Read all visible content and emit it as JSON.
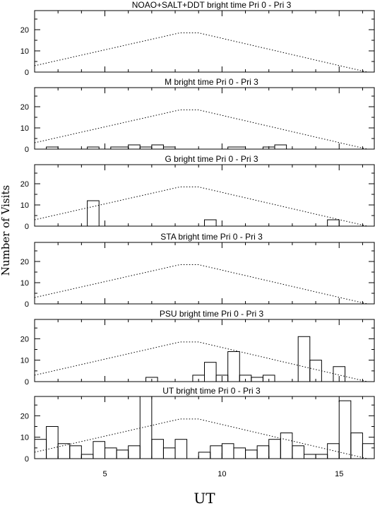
{
  "chart_data": {
    "type": "bar",
    "style": "step-histogram with dotted reference curve",
    "xlabel": "UT",
    "ylabel": "Number of Visits",
    "xlim": [
      2,
      16.5
    ],
    "ylim": [
      0,
      29
    ],
    "x_ticks": [
      5,
      10,
      15
    ],
    "y_ticks": [
      0,
      10,
      20
    ],
    "reference_curve": {
      "style": "dotted",
      "x": [
        2,
        8.2,
        9.0,
        16.2
      ],
      "y": [
        3,
        18.5,
        18.5,
        0
      ]
    },
    "panels": [
      {
        "title": "NOAO+SALT+DDT    bright time Pri 0 - Pri 3",
        "bins": []
      },
      {
        "title": "M    bright time Pri 0 - Pri 3",
        "bins": [
          {
            "x0": 2.5,
            "x1": 3.0,
            "y": 1
          },
          {
            "x0": 4.25,
            "x1": 4.75,
            "y": 1
          },
          {
            "x0": 5.25,
            "x1": 6.0,
            "y": 1
          },
          {
            "x0": 6.0,
            "x1": 6.5,
            "y": 2
          },
          {
            "x0": 6.5,
            "x1": 7.0,
            "y": 1
          },
          {
            "x0": 7.0,
            "x1": 7.5,
            "y": 2
          },
          {
            "x0": 7.5,
            "x1": 8.0,
            "y": 1
          },
          {
            "x0": 10.25,
            "x1": 11.0,
            "y": 1
          },
          {
            "x0": 11.75,
            "x1": 12.25,
            "y": 1
          },
          {
            "x0": 12.25,
            "x1": 12.75,
            "y": 2
          }
        ]
      },
      {
        "title": "G    bright time Pri 0 - Pri 3",
        "bins": [
          {
            "x0": 4.25,
            "x1": 4.75,
            "y": 12
          },
          {
            "x0": 9.25,
            "x1": 9.75,
            "y": 3
          },
          {
            "x0": 14.5,
            "x1": 15.0,
            "y": 3
          }
        ]
      },
      {
        "title": "STA    bright time Pri 0 - Pri 3",
        "bins": []
      },
      {
        "title": "PSU    bright time Pri 0 - Pri 3",
        "bins": [
          {
            "x0": 6.75,
            "x1": 7.25,
            "y": 2
          },
          {
            "x0": 8.75,
            "x1": 9.25,
            "y": 3
          },
          {
            "x0": 9.25,
            "x1": 9.75,
            "y": 9
          },
          {
            "x0": 9.75,
            "x1": 10.25,
            "y": 3
          },
          {
            "x0": 10.25,
            "x1": 10.75,
            "y": 14
          },
          {
            "x0": 10.75,
            "x1": 11.25,
            "y": 3
          },
          {
            "x0": 11.25,
            "x1": 11.75,
            "y": 2
          },
          {
            "x0": 11.75,
            "x1": 12.25,
            "y": 3
          },
          {
            "x0": 13.25,
            "x1": 13.75,
            "y": 21
          },
          {
            "x0": 13.75,
            "x1": 14.25,
            "y": 10
          },
          {
            "x0": 14.75,
            "x1": 15.25,
            "y": 7
          }
        ]
      },
      {
        "title": "UT    bright time Pri 0 - Pri 3",
        "bins": [
          {
            "x0": 2.0,
            "x1": 2.5,
            "y": 9
          },
          {
            "x0": 2.5,
            "x1": 3.0,
            "y": 15
          },
          {
            "x0": 3.0,
            "x1": 3.5,
            "y": 7
          },
          {
            "x0": 3.5,
            "x1": 4.0,
            "y": 6
          },
          {
            "x0": 4.0,
            "x1": 4.5,
            "y": 2
          },
          {
            "x0": 4.5,
            "x1": 5.0,
            "y": 8
          },
          {
            "x0": 5.0,
            "x1": 5.5,
            "y": 5
          },
          {
            "x0": 5.5,
            "x1": 6.0,
            "y": 4
          },
          {
            "x0": 6.0,
            "x1": 6.5,
            "y": 6
          },
          {
            "x0": 6.5,
            "x1": 7.0,
            "y": 29
          },
          {
            "x0": 7.0,
            "x1": 7.5,
            "y": 9
          },
          {
            "x0": 7.5,
            "x1": 8.0,
            "y": 5
          },
          {
            "x0": 8.0,
            "x1": 8.5,
            "y": 9
          },
          {
            "x0": 8.5,
            "x1": 9.0,
            "y": 0
          },
          {
            "x0": 9.0,
            "x1": 9.5,
            "y": 3
          },
          {
            "x0": 9.5,
            "x1": 10.0,
            "y": 6
          },
          {
            "x0": 10.0,
            "x1": 10.5,
            "y": 7
          },
          {
            "x0": 10.5,
            "x1": 11.0,
            "y": 5
          },
          {
            "x0": 11.0,
            "x1": 11.5,
            "y": 4
          },
          {
            "x0": 11.5,
            "x1": 12.0,
            "y": 6
          },
          {
            "x0": 12.0,
            "x1": 12.5,
            "y": 9
          },
          {
            "x0": 12.5,
            "x1": 13.0,
            "y": 12
          },
          {
            "x0": 13.0,
            "x1": 13.5,
            "y": 6
          },
          {
            "x0": 13.5,
            "x1": 14.0,
            "y": 2
          },
          {
            "x0": 14.0,
            "x1": 14.5,
            "y": 2
          },
          {
            "x0": 14.5,
            "x1": 15.0,
            "y": 7
          },
          {
            "x0": 15.0,
            "x1": 15.5,
            "y": 27
          },
          {
            "x0": 15.5,
            "x1": 16.0,
            "y": 12
          },
          {
            "x0": 16.0,
            "x1": 16.5,
            "y": 7
          }
        ]
      }
    ]
  }
}
